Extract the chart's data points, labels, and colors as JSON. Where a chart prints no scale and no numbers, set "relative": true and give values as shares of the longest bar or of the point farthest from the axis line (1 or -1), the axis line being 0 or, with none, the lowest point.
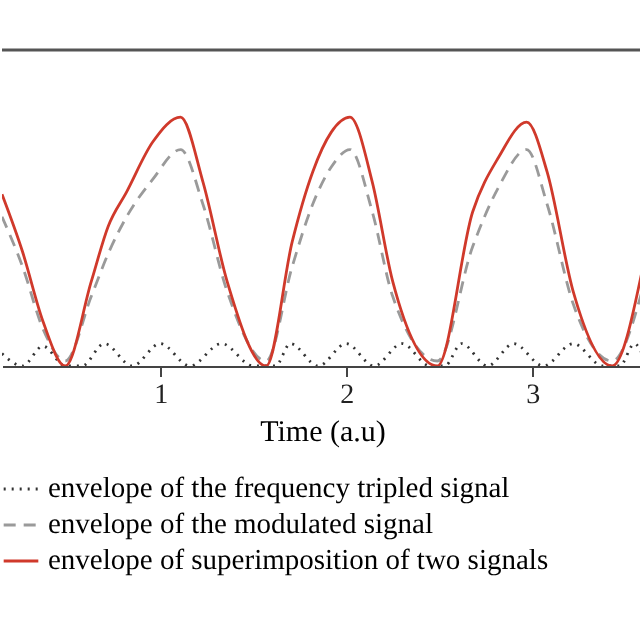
{
  "chart_data": {
    "type": "line",
    "xlabel": "Time (a.u)",
    "relative": true,
    "legend": "bottom",
    "xlim": [
      0.15,
      3.59
    ],
    "xticks": [
      1,
      2,
      3
    ],
    "grid": false,
    "marker": "none",
    "x": [
      0.15,
      0.26,
      0.37,
      0.49,
      0.63,
      0.72,
      0.82,
      0.96,
      1.11,
      1.23,
      1.36,
      1.57,
      1.71,
      1.82,
      1.92,
      2.02,
      2.14,
      2.25,
      2.49,
      2.68,
      2.82,
      2.97,
      3.08,
      3.22,
      3.43,
      3.59
    ],
    "series": [
      {
        "name": "envelope of the frequency tripled signal",
        "color": "#333333",
        "line_style": "dotted",
        "x": [
          0.15,
          0.26,
          0.37,
          0.49,
          0.58,
          0.7,
          0.85,
          1.0,
          1.16,
          1.33,
          1.5,
          1.57,
          1.62,
          1.7,
          1.85,
          2.0,
          2.15,
          2.3,
          2.45,
          2.49,
          2.53,
          2.62,
          2.76,
          2.9,
          3.06,
          3.22,
          3.38,
          3.43,
          3.47,
          3.55,
          3.59
        ],
        "values": [
          0.05,
          0.0,
          0.08,
          0.0,
          0.0,
          0.09,
          0.0,
          0.09,
          0.0,
          0.09,
          0.0,
          0.0,
          0.0,
          0.09,
          0.0,
          0.09,
          0.0,
          0.09,
          0.0,
          0.0,
          0.0,
          0.09,
          0.0,
          0.09,
          0.0,
          0.09,
          0.0,
          0.0,
          0.0,
          0.09,
          0.05
        ]
      },
      {
        "name": "envelope of the modulated signal",
        "color": "#9a9a9a",
        "line_style": "dashed",
        "values": [
          0.6,
          0.4,
          0.15,
          0.02,
          0.28,
          0.45,
          0.6,
          0.75,
          0.87,
          0.65,
          0.3,
          0.02,
          0.4,
          0.65,
          0.8,
          0.87,
          0.62,
          0.28,
          0.02,
          0.48,
          0.72,
          0.87,
          0.65,
          0.25,
          0.02,
          0.3
        ]
      },
      {
        "name": "envelope of superimposition of two signals",
        "color": "#d0392b",
        "line_style": "solid",
        "values": [
          0.69,
          0.46,
          0.18,
          0.0,
          0.34,
          0.56,
          0.7,
          0.9,
          1.0,
          0.74,
          0.34,
          0.0,
          0.5,
          0.78,
          0.94,
          1.0,
          0.74,
          0.34,
          0.0,
          0.62,
          0.84,
          0.98,
          0.78,
          0.3,
          0.0,
          0.38
        ]
      }
    ]
  }
}
